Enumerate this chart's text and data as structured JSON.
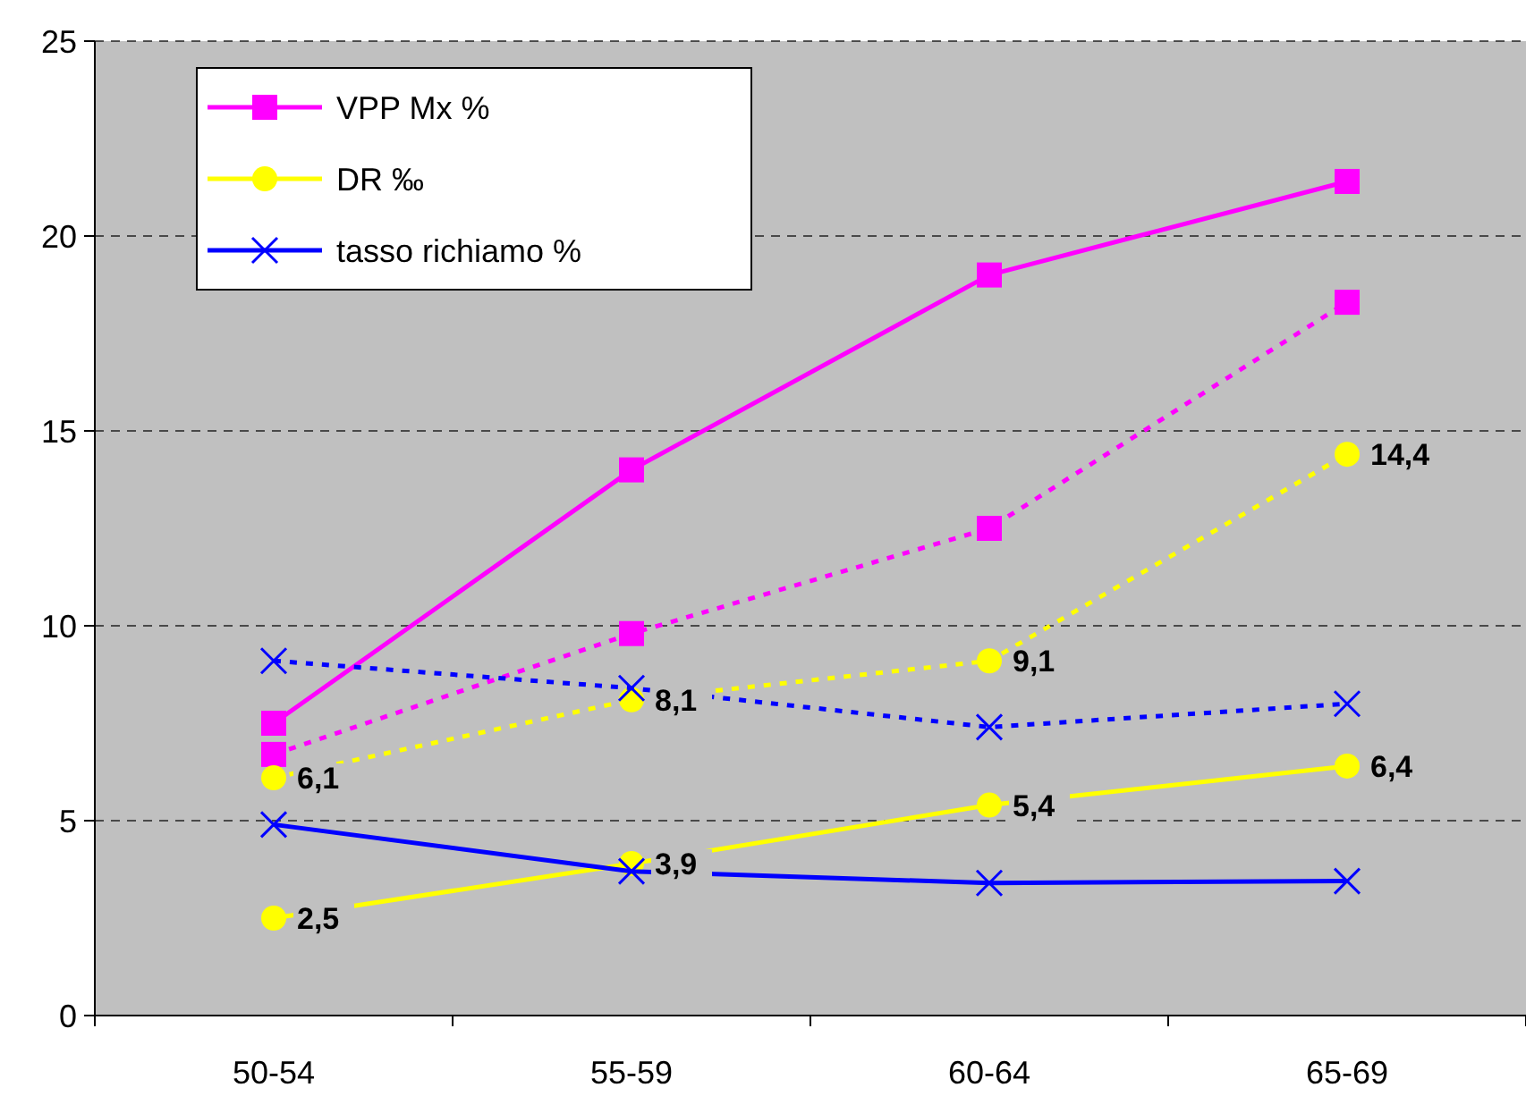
{
  "chart_data": {
    "type": "line",
    "categories": [
      "50-54",
      "55-59",
      "60-64",
      "65-69"
    ],
    "ylim": [
      0,
      25
    ],
    "yticks": [
      0,
      5,
      10,
      15,
      20,
      25
    ],
    "grid": "y",
    "legend": "top left",
    "series": [
      {
        "name": "VPP Mx %",
        "color": "#ff00ff",
        "marker": "square",
        "line_style": "solid",
        "values": [
          7.5,
          14.0,
          19.0,
          21.4
        ]
      },
      {
        "color": "#ff00ff",
        "marker": "square",
        "line_style": "dotted",
        "values": [
          6.7,
          9.8,
          12.5,
          18.3
        ]
      },
      {
        "name": "DR ‰",
        "color": "#ffff00",
        "marker": "circle",
        "line_style": "solid",
        "values": [
          2.5,
          3.9,
          5.4,
          6.4
        ],
        "value_labels": [
          "2,5",
          "3,9",
          "5,4",
          "6,4"
        ]
      },
      {
        "color": "#ffff00",
        "marker": "circle",
        "line_style": "dotted",
        "values": [
          6.1,
          8.1,
          9.1,
          14.4
        ],
        "value_labels": [
          "6,1",
          "8,1",
          "9,1",
          "14,4"
        ]
      },
      {
        "name": "tasso richiamo %",
        "color": "#0000ff",
        "marker": "cross",
        "line_style": "solid",
        "values": [
          4.9,
          3.7,
          3.4,
          3.45
        ]
      },
      {
        "color": "#0000ff",
        "marker": "cross",
        "line_style": "dotted",
        "values": [
          9.1,
          8.4,
          7.4,
          8.0
        ]
      }
    ]
  }
}
